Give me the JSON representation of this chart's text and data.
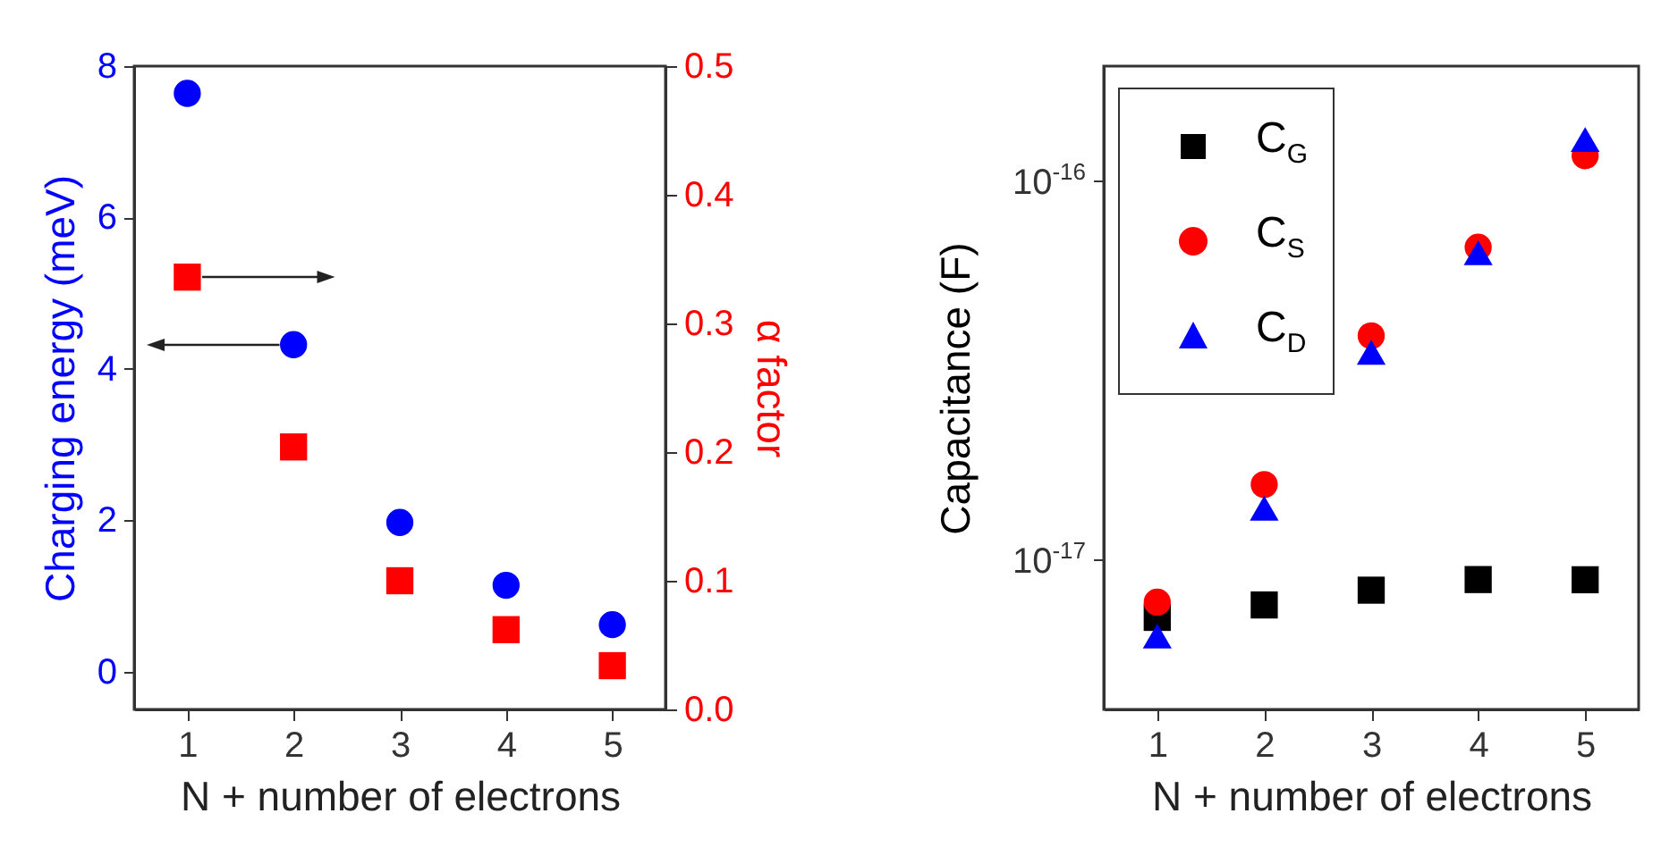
{
  "chart_data": [
    {
      "type": "scatter",
      "xlabel": "N + number of electrons",
      "ylabel": "Charging energy (meV)",
      "y2label": "α factor",
      "x": [
        1,
        2,
        3,
        4,
        5
      ],
      "xlim": [
        0.5,
        5.5
      ],
      "xticks": [
        1,
        2,
        3,
        4,
        5
      ],
      "ylim": [
        -0.5,
        8
      ],
      "yticks": [
        0,
        2,
        4,
        6,
        8
      ],
      "y2lim": [
        0,
        0.5
      ],
      "y2ticks": [
        {
          "value": 0,
          "label": "0.0"
        },
        0.1,
        0.2,
        0.3,
        0.4,
        0.5
      ],
      "series": [
        {
          "color": "#0000ff",
          "marker": "circle",
          "values": [
            7.64,
            4.32,
            1.97,
            1.14,
            0.62
          ]
        },
        {
          "color": "#ff0000",
          "marker": "square",
          "axis": "y2",
          "values": [
            0.336,
            0.204,
            0.1,
            0.062,
            0.034
          ]
        }
      ]
    },
    {
      "type": "scatter",
      "xlabel": "N + number of electrons",
      "ylabel": "Capacitance (F)",
      "log": "y",
      "legend": "top left",
      "x": [
        1,
        2,
        3,
        4,
        5
      ],
      "xlim": [
        0.5,
        5.5
      ],
      "xticks": [
        1,
        2,
        3,
        4,
        5
      ],
      "ylim": [
        4e-18,
        2e-16
      ],
      "yticks": [
        {
          "value": 1e-17,
          "label": "10$^{-17}$"
        },
        {
          "value": 1e-16,
          "label": "10$^{-16}$"
        }
      ],
      "series": [
        {
          "name": "C$_{G}$",
          "color": "#000000",
          "marker": "square",
          "values": [
            7e-18,
            7.55e-18,
            8.26e-18,
            8.81e-18,
            8.8e-18
          ]
        },
        {
          "name": "C$_{S}$",
          "color": "#ff0000",
          "marker": "circle",
          "values": [
            7.68e-18,
            1.57e-17,
            3.88e-17,
            6.65e-17,
            1.16e-16
          ]
        },
        {
          "name": "C$_{D}$",
          "color": "#0000ff",
          "marker": "triangle",
          "values": [
            6.25e-18,
            1.36e-17,
            3.51e-17,
            6.43e-17,
            1.28e-16
          ]
        }
      ]
    }
  ]
}
